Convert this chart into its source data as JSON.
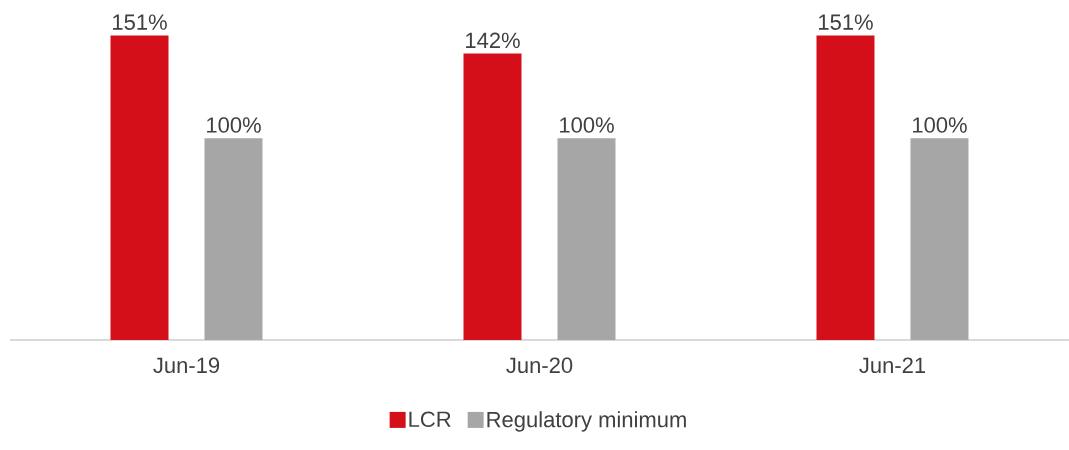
{
  "chart_data": {
    "type": "bar",
    "categories": [
      "Jun-19",
      "Jun-20",
      "Jun-21"
    ],
    "series": [
      {
        "name": "LCR",
        "color": "#d50f1a",
        "values": [
          151,
          142,
          151
        ],
        "value_labels": [
          "151%",
          "142%",
          "151%"
        ]
      },
      {
        "name": "Regulatory minimum",
        "color": "#a6a6a6",
        "values": [
          100,
          100,
          100
        ],
        "value_labels": [
          "100%",
          "100%",
          "100%"
        ]
      }
    ],
    "legend": "bottom"
  }
}
